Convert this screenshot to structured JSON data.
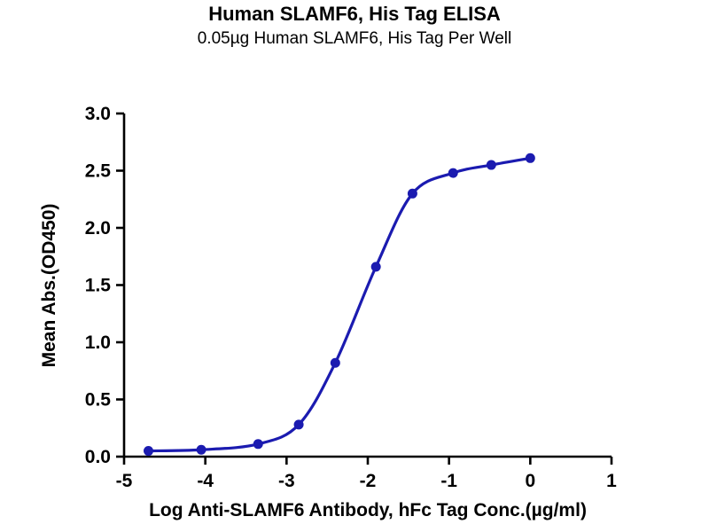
{
  "header": {
    "title": "Human SLAMF6, His Tag ELISA",
    "subtitle": "0.05µg Human SLAMF6, His Tag Per Well"
  },
  "chart_data": {
    "type": "line",
    "title": "Human SLAMF6, His Tag ELISA",
    "subtitle": "0.05µg Human SLAMF6, His Tag Per Well",
    "xlabel": "Log Anti-SLAMF6 Antibody, hFc Tag Conc.(µg/ml)",
    "ylabel": "Mean Abs.(OD450)",
    "xlim": [
      -5,
      1
    ],
    "ylim": [
      0,
      3
    ],
    "x_ticks": [
      -5,
      -4,
      -3,
      -2,
      -1,
      0,
      1
    ],
    "x_tick_labels": [
      "-5",
      "-4",
      "-3",
      "-2",
      "-1",
      "0",
      "1"
    ],
    "y_ticks": [
      0,
      0.5,
      1.0,
      1.5,
      2.0,
      2.5,
      3.0
    ],
    "y_tick_labels": [
      "0.0",
      "0.5",
      "1.0",
      "1.5",
      "2.0",
      "2.5",
      "3.0"
    ],
    "grid": false,
    "legend": "none",
    "line_color": "#1b1bb0",
    "marker_color": "#1b1bb0",
    "axis_color": "#000000",
    "series": [
      {
        "name": "Human SLAMF6, His Tag",
        "x": [
          -4.7,
          -4.05,
          -3.35,
          -2.85,
          -2.4,
          -1.9,
          -1.45,
          -0.95,
          -0.48,
          0.0
        ],
        "y": [
          0.05,
          0.06,
          0.11,
          0.28,
          0.82,
          1.66,
          2.3,
          2.48,
          2.55,
          2.61
        ]
      }
    ]
  }
}
